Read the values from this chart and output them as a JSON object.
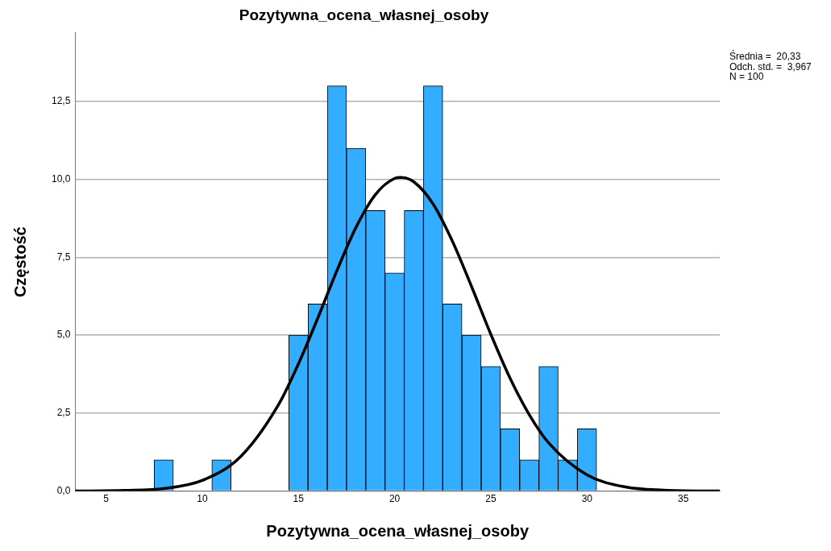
{
  "chart_data": {
    "type": "histogram",
    "title": "Pozytywna_ocena_własnej_osoby",
    "xlabel": "Pozytywna_ocena_własnej_osoby",
    "ylabel": "Częstość",
    "bins": [
      7.5,
      8.5,
      9.5,
      10.5,
      11.5,
      12.5,
      13.5,
      14.5,
      15.5,
      16.5,
      17.5,
      18.5,
      19.5,
      20.5,
      21.5,
      22.5,
      23.5,
      24.5,
      25.5,
      26.5,
      27.5,
      28.5,
      29.5,
      30.5
    ],
    "series": [
      {
        "color": "#33adff",
        "values": [
          1,
          0,
          0,
          1,
          0,
          0,
          0,
          5,
          6,
          13,
          11,
          9,
          7,
          9,
          13,
          6,
          5,
          4,
          2,
          1,
          4,
          1,
          2
        ]
      },
      {
        "type": "line",
        "color": "#000000",
        "x": [
          3.4,
          6,
          8,
          10,
          12,
          14,
          15,
          16,
          17,
          18,
          19,
          20,
          20.33,
          21,
          22,
          23,
          24,
          25,
          26,
          27,
          28,
          30,
          32,
          34,
          36.9
        ],
        "values": [
          0,
          0.02,
          0.08,
          0.34,
          1.11,
          2.81,
          4.08,
          5.54,
          7.07,
          8.47,
          9.51,
          10.03,
          10.06,
          9.92,
          9.21,
          8.02,
          6.56,
          5.03,
          3.62,
          2.45,
          1.55,
          0.52,
          0.13,
          0.03,
          0
        ]
      }
    ],
    "xlim": [
      3.4,
      36.9
    ],
    "xticks": [
      5,
      10,
      15,
      20,
      25,
      30,
      35
    ],
    "ylim": [
      0,
      14.7
    ],
    "yticks": [
      {
        "value": 0,
        "label": "0,0"
      },
      {
        "value": 2.5,
        "label": "2,5"
      },
      {
        "value": 5,
        "label": "5,0"
      },
      {
        "value": 7.5,
        "label": "7,5"
      },
      {
        "value": 10,
        "label": "10,0"
      },
      {
        "value": 12.5,
        "label": "12,5"
      }
    ],
    "grid": "y",
    "marker": "none",
    "line_style": "solid",
    "annotations": [
      "Średnia =  20,33",
      "Odch. std. =  3,967",
      "N = 100"
    ]
  }
}
